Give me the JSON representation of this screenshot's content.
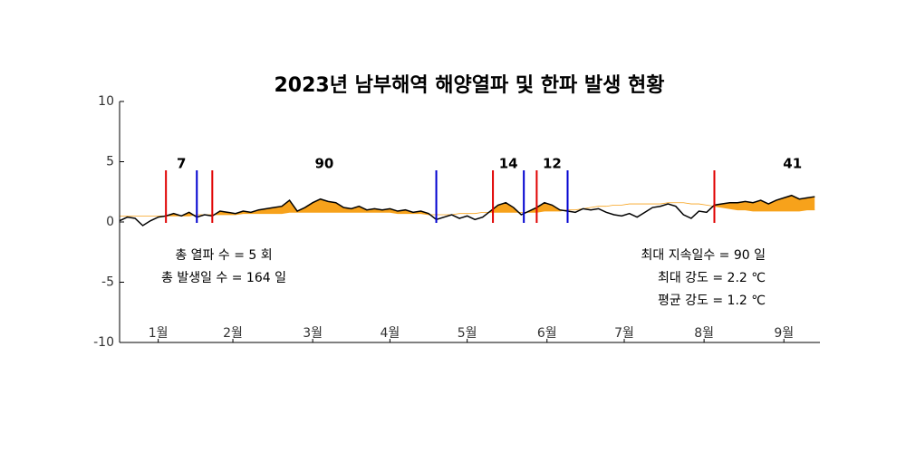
{
  "chart_data": {
    "type": "line",
    "title": "2023년 남부해역 해양열파 및 한파 발생 현황",
    "xlim": [
      1,
      273
    ],
    "ylim": [
      -10,
      10
    ],
    "yticks": [
      -10,
      -5,
      0,
      5,
      10
    ],
    "xticks": [
      {
        "value": 16,
        "label": "1월"
      },
      {
        "value": 45,
        "label": "2월"
      },
      {
        "value": 76,
        "label": "3월"
      },
      {
        "value": 106,
        "label": "4월"
      },
      {
        "value": 136,
        "label": "5월"
      },
      {
        "value": 167,
        "label": "6월"
      },
      {
        "value": 197,
        "label": "7월"
      },
      {
        "value": 228,
        "label": "8월"
      },
      {
        "value": 259,
        "label": "9월"
      }
    ],
    "x": [
      1,
      4,
      7,
      10,
      13,
      16,
      19,
      22,
      25,
      28,
      31,
      34,
      37,
      40,
      43,
      46,
      49,
      52,
      55,
      58,
      61,
      64,
      67,
      70,
      73,
      76,
      79,
      82,
      85,
      88,
      91,
      94,
      97,
      100,
      103,
      106,
      109,
      112,
      115,
      118,
      121,
      124,
      127,
      130,
      133,
      136,
      139,
      142,
      145,
      148,
      151,
      154,
      157,
      160,
      163,
      166,
      169,
      172,
      175,
      178,
      181,
      184,
      187,
      190,
      193,
      196,
      199,
      202,
      205,
      208,
      211,
      214,
      217,
      220,
      223,
      226,
      229,
      232,
      235,
      238,
      241,
      244,
      247,
      250,
      253,
      256,
      259,
      262,
      265,
      268,
      271
    ],
    "series": [
      {
        "color": "#000000",
        "values": [
          0.1,
          0.4,
          0.3,
          -0.3,
          0.1,
          0.4,
          0.5,
          0.7,
          0.5,
          0.8,
          0.4,
          0.6,
          0.5,
          0.9,
          0.8,
          0.7,
          0.9,
          0.8,
          1.0,
          1.1,
          1.2,
          1.3,
          1.8,
          0.9,
          1.2,
          1.6,
          1.9,
          1.7,
          1.6,
          1.2,
          1.1,
          1.3,
          1.0,
          1.1,
          1.0,
          1.1,
          0.9,
          1.0,
          0.8,
          0.9,
          0.7,
          0.2,
          0.4,
          0.6,
          0.3,
          0.5,
          0.2,
          0.4,
          0.9,
          1.4,
          1.6,
          1.2,
          0.6,
          0.9,
          1.2,
          1.6,
          1.4,
          1.0,
          0.9,
          0.8,
          1.1,
          1.0,
          1.1,
          0.8,
          0.6,
          0.5,
          0.7,
          0.4,
          0.8,
          1.2,
          1.3,
          1.5,
          1.3,
          0.6,
          0.3,
          0.9,
          0.8,
          1.4,
          1.5,
          1.6,
          1.6,
          1.7,
          1.6,
          1.8,
          1.5,
          1.8,
          2.0,
          2.2,
          1.9,
          2.0,
          2.1
        ]
      },
      {
        "color": "#f7a21b",
        "values": [
          0.5,
          0.5,
          0.5,
          0.5,
          0.5,
          0.5,
          0.5,
          0.5,
          0.5,
          0.5,
          0.6,
          0.6,
          0.6,
          0.6,
          0.6,
          0.6,
          0.7,
          0.7,
          0.7,
          0.7,
          0.7,
          0.7,
          0.8,
          0.8,
          0.8,
          0.8,
          0.8,
          0.8,
          0.8,
          0.8,
          0.8,
          0.8,
          0.8,
          0.8,
          0.8,
          0.8,
          0.7,
          0.7,
          0.7,
          0.7,
          0.6,
          0.6,
          0.6,
          0.6,
          0.7,
          0.7,
          0.7,
          0.8,
          0.8,
          0.8,
          0.8,
          0.8,
          0.8,
          0.8,
          0.8,
          0.9,
          0.9,
          0.9,
          1.0,
          1.0,
          1.1,
          1.2,
          1.3,
          1.3,
          1.4,
          1.4,
          1.5,
          1.5,
          1.5,
          1.5,
          1.5,
          1.6,
          1.6,
          1.6,
          1.5,
          1.5,
          1.4,
          1.3,
          1.2,
          1.1,
          1.0,
          1.0,
          0.9,
          0.9,
          0.9,
          0.9,
          0.9,
          0.9,
          0.9,
          1.0,
          1.0
        ]
      }
    ],
    "events": [
      {
        "start": 19,
        "end": 31,
        "duration": 7
      },
      {
        "start": 37,
        "end": 124,
        "duration": 90
      },
      {
        "start": 146,
        "end": 158,
        "duration": 14
      },
      {
        "start": 163,
        "end": 175,
        "duration": 12
      },
      {
        "start": 232,
        "end": null,
        "duration": 41
      }
    ],
    "start_color": "#e00000",
    "end_color": "#0000d0",
    "stats_left": [
      "총 열파 수 = 5 회",
      "총 발생일 수  =  164 일"
    ],
    "stats_right": [
      "최대 지속일수 =  90 일",
      "최대 강도 =  2.2 ℃",
      "평균 강도 =  1.2 ℃"
    ]
  }
}
